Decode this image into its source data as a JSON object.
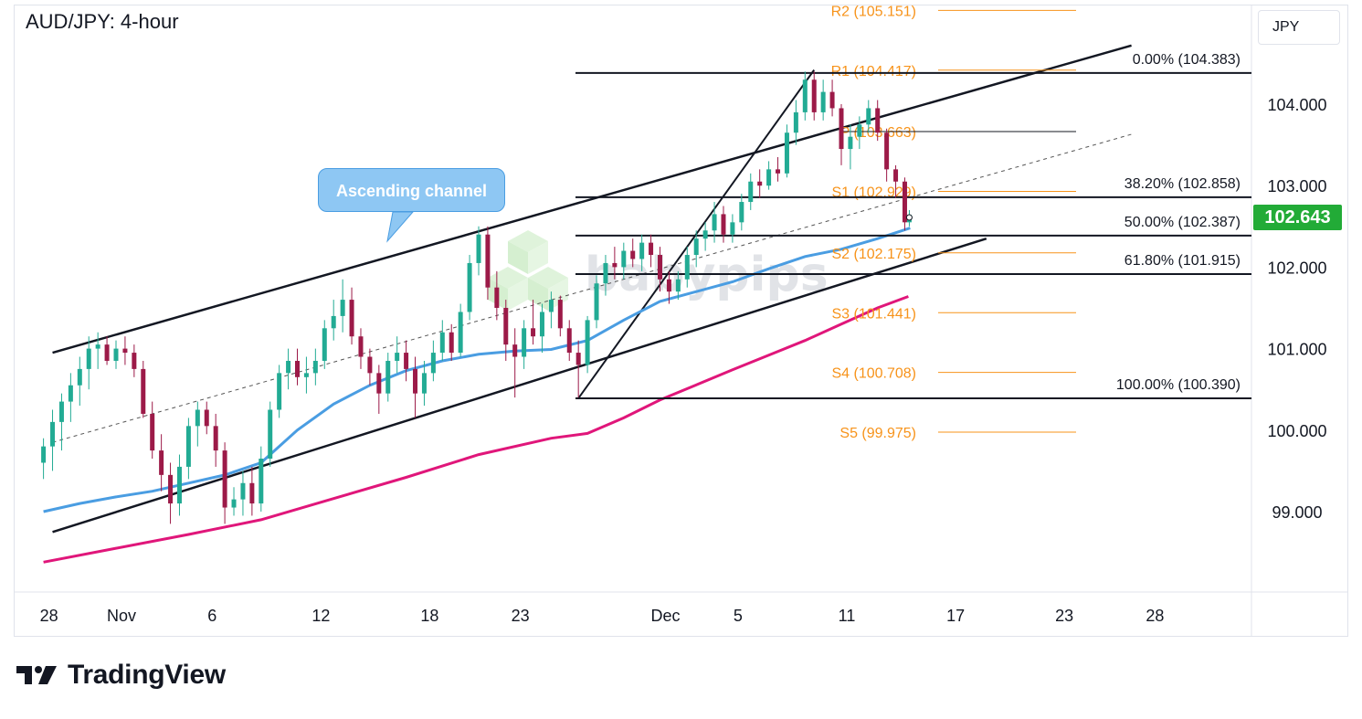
{
  "title": "AUD/JPY: 4-hour",
  "currency_label": "JPY",
  "current_price_label": "102.643",
  "callout_label": "Ascending channel",
  "watermark": "babypips",
  "brand": "TradingView",
  "colors": {
    "up_candle": "#22ab94",
    "down_candle": "#9c1a48",
    "ema_fast": "#4a9de2",
    "ema_slow": "#e0167a",
    "pivot": "#f7931a",
    "price_tag": "#22ab37"
  },
  "chart_data": {
    "type": "candlestick",
    "yaxis": {
      "ticks": [
        "104.000",
        "103.000",
        "102.000",
        "101.000",
        "100.000",
        "99.000"
      ],
      "tick_values": [
        104,
        103,
        102,
        101,
        100,
        99
      ],
      "range": [
        98.3,
        105.2
      ]
    },
    "xaxis": {
      "ticks": [
        "28",
        "Nov",
        "6",
        "12",
        "18",
        "23",
        "Dec",
        "5",
        "11",
        "17",
        "23",
        "28"
      ],
      "tick_day_index": [
        -4,
        0,
        5,
        11,
        17,
        22,
        30,
        34,
        40,
        46,
        52,
        57
      ]
    },
    "pivots": [
      {
        "label": "R2 (105.151)",
        "value": 105.151
      },
      {
        "label": "R1 (104.417)",
        "value": 104.417
      },
      {
        "label": "P (103.663)",
        "value": 103.663
      },
      {
        "label": "S1 (102.929)",
        "value": 102.929
      },
      {
        "label": "S2 (102.175)",
        "value": 102.175
      },
      {
        "label": "S3 (101.441)",
        "value": 101.441
      },
      {
        "label": "S4 (100.708)",
        "value": 100.708
      },
      {
        "label": "S5 (99.975)",
        "value": 99.975
      }
    ],
    "fibonacci": [
      {
        "label": "0.00% (104.383)",
        "value": 104.383
      },
      {
        "label": "38.20% (102.858)",
        "value": 102.858
      },
      {
        "label": "50.00% (102.387)",
        "value": 102.387
      },
      {
        "label": "61.80% (101.915)",
        "value": 101.915
      },
      {
        "label": "100.00% (100.390)",
        "value": 100.39
      }
    ],
    "channel": {
      "upper": [
        [
          -3.5,
          100.95
        ],
        [
          56,
          104.72
        ]
      ],
      "lower": [
        [
          -3.5,
          98.75
        ],
        [
          48,
          102.35
        ]
      ],
      "mid": [
        [
          -3.5,
          99.85
        ],
        [
          56,
          103.63
        ]
      ]
    },
    "swing_line": [
      [
        25.5,
        100.39
      ],
      [
        38.5,
        104.42
      ]
    ],
    "ema_fast": [
      [
        -4,
        99.0
      ],
      [
        -2,
        99.1
      ],
      [
        0,
        99.18
      ],
      [
        2,
        99.25
      ],
      [
        4,
        99.35
      ],
      [
        6,
        99.45
      ],
      [
        8,
        99.6
      ],
      [
        10,
        100.0
      ],
      [
        12,
        100.32
      ],
      [
        14,
        100.55
      ],
      [
        16,
        100.73
      ],
      [
        18,
        100.85
      ],
      [
        20,
        100.93
      ],
      [
        22,
        100.97
      ],
      [
        24,
        100.99
      ],
      [
        26,
        101.1
      ],
      [
        28,
        101.35
      ],
      [
        30,
        101.58
      ],
      [
        32,
        101.7
      ],
      [
        34,
        101.82
      ],
      [
        36,
        101.98
      ],
      [
        38,
        102.13
      ],
      [
        40,
        102.22
      ],
      [
        42,
        102.35
      ],
      [
        43.8,
        102.48
      ]
    ],
    "ema_slow": [
      [
        -4,
        98.38
      ],
      [
        0,
        98.55
      ],
      [
        4,
        98.72
      ],
      [
        8,
        98.9
      ],
      [
        12,
        99.16
      ],
      [
        16,
        99.42
      ],
      [
        20,
        99.7
      ],
      [
        24,
        99.9
      ],
      [
        26,
        99.96
      ],
      [
        28,
        100.15
      ],
      [
        30,
        100.37
      ],
      [
        34,
        100.74
      ],
      [
        38,
        101.1
      ],
      [
        40,
        101.3
      ],
      [
        42,
        101.5
      ],
      [
        43.7,
        101.64
      ]
    ],
    "last_price": 102.643,
    "candles": [
      {
        "t": -4.0,
        "o": 99.6,
        "h": 99.9,
        "l": 99.4,
        "c": 99.8
      },
      {
        "t": -3.5,
        "o": 99.8,
        "h": 100.25,
        "l": 99.5,
        "c": 100.1
      },
      {
        "t": -3.0,
        "o": 100.1,
        "h": 100.45,
        "l": 99.75,
        "c": 100.35
      },
      {
        "t": -2.5,
        "o": 100.35,
        "h": 100.7,
        "l": 100.1,
        "c": 100.55
      },
      {
        "t": -2.0,
        "o": 100.55,
        "h": 100.9,
        "l": 100.3,
        "c": 100.75
      },
      {
        "t": -1.5,
        "o": 100.75,
        "h": 101.15,
        "l": 100.5,
        "c": 101.0
      },
      {
        "t": -1.0,
        "o": 101.0,
        "h": 101.2,
        "l": 100.75,
        "c": 101.05
      },
      {
        "t": -0.5,
        "o": 101.05,
        "h": 101.15,
        "l": 100.8,
        "c": 100.85
      },
      {
        "t": 0.0,
        "o": 100.85,
        "h": 101.1,
        "l": 100.75,
        "c": 101.0
      },
      {
        "t": 0.5,
        "o": 101.0,
        "h": 101.15,
        "l": 100.8,
        "c": 100.95
      },
      {
        "t": 1.0,
        "o": 100.95,
        "h": 101.05,
        "l": 100.65,
        "c": 100.75
      },
      {
        "t": 1.5,
        "o": 100.75,
        "h": 100.85,
        "l": 100.15,
        "c": 100.2
      },
      {
        "t": 2.0,
        "o": 100.2,
        "h": 100.35,
        "l": 99.65,
        "c": 99.75
      },
      {
        "t": 2.5,
        "o": 99.75,
        "h": 99.95,
        "l": 99.25,
        "c": 99.45
      },
      {
        "t": 3.0,
        "o": 99.45,
        "h": 99.6,
        "l": 98.85,
        "c": 99.1
      },
      {
        "t": 3.5,
        "o": 99.1,
        "h": 99.7,
        "l": 98.95,
        "c": 99.55
      },
      {
        "t": 4.0,
        "o": 99.55,
        "h": 100.15,
        "l": 99.4,
        "c": 100.05
      },
      {
        "t": 4.5,
        "o": 100.05,
        "h": 100.35,
        "l": 99.8,
        "c": 100.25
      },
      {
        "t": 5.0,
        "o": 100.25,
        "h": 100.35,
        "l": 99.95,
        "c": 100.05
      },
      {
        "t": 5.5,
        "o": 100.05,
        "h": 100.2,
        "l": 99.55,
        "c": 99.75
      },
      {
        "t": 6.0,
        "o": 99.75,
        "h": 99.85,
        "l": 98.85,
        "c": 99.05
      },
      {
        "t": 6.5,
        "o": 99.05,
        "h": 99.3,
        "l": 98.95,
        "c": 99.15
      },
      {
        "t": 7.0,
        "o": 99.15,
        "h": 99.5,
        "l": 98.95,
        "c": 99.35
      },
      {
        "t": 7.5,
        "o": 99.35,
        "h": 99.55,
        "l": 98.95,
        "c": 99.1
      },
      {
        "t": 8.0,
        "o": 99.1,
        "h": 99.8,
        "l": 99.0,
        "c": 99.65
      },
      {
        "t": 8.5,
        "o": 99.65,
        "h": 100.35,
        "l": 99.55,
        "c": 100.25
      },
      {
        "t": 9.0,
        "o": 100.25,
        "h": 100.8,
        "l": 100.15,
        "c": 100.7
      },
      {
        "t": 9.5,
        "o": 100.7,
        "h": 101.0,
        "l": 100.5,
        "c": 100.85
      },
      {
        "t": 10.0,
        "o": 100.85,
        "h": 101.0,
        "l": 100.55,
        "c": 100.65
      },
      {
        "t": 10.5,
        "o": 100.65,
        "h": 100.9,
        "l": 100.45,
        "c": 100.7
      },
      {
        "t": 11.0,
        "o": 100.7,
        "h": 101.0,
        "l": 100.55,
        "c": 100.85
      },
      {
        "t": 11.5,
        "o": 100.85,
        "h": 101.35,
        "l": 100.75,
        "c": 101.25
      },
      {
        "t": 12.0,
        "o": 101.25,
        "h": 101.6,
        "l": 101.1,
        "c": 101.4
      },
      {
        "t": 12.5,
        "o": 101.4,
        "h": 101.85,
        "l": 101.2,
        "c": 101.6
      },
      {
        "t": 13.0,
        "o": 101.6,
        "h": 101.75,
        "l": 101.05,
        "c": 101.15
      },
      {
        "t": 13.5,
        "o": 101.15,
        "h": 101.25,
        "l": 100.75,
        "c": 100.9
      },
      {
        "t": 14.0,
        "o": 100.9,
        "h": 101.0,
        "l": 100.55,
        "c": 100.7
      },
      {
        "t": 14.5,
        "o": 100.7,
        "h": 100.8,
        "l": 100.2,
        "c": 100.45
      },
      {
        "t": 15.0,
        "o": 100.45,
        "h": 100.95,
        "l": 100.35,
        "c": 100.85
      },
      {
        "t": 15.5,
        "o": 100.85,
        "h": 101.15,
        "l": 100.7,
        "c": 100.95
      },
      {
        "t": 16.0,
        "o": 100.95,
        "h": 101.1,
        "l": 100.6,
        "c": 100.75
      },
      {
        "t": 16.5,
        "o": 100.75,
        "h": 100.9,
        "l": 100.15,
        "c": 100.45
      },
      {
        "t": 17.0,
        "o": 100.45,
        "h": 100.85,
        "l": 100.3,
        "c": 100.7
      },
      {
        "t": 17.5,
        "o": 100.7,
        "h": 101.1,
        "l": 100.6,
        "c": 100.95
      },
      {
        "t": 18.0,
        "o": 100.95,
        "h": 101.35,
        "l": 100.85,
        "c": 101.2
      },
      {
        "t": 18.5,
        "o": 101.2,
        "h": 101.3,
        "l": 100.85,
        "c": 100.95
      },
      {
        "t": 19.0,
        "o": 100.95,
        "h": 101.55,
        "l": 100.9,
        "c": 101.45
      },
      {
        "t": 19.5,
        "o": 101.45,
        "h": 102.15,
        "l": 101.35,
        "c": 102.05
      },
      {
        "t": 20.0,
        "o": 102.05,
        "h": 102.5,
        "l": 101.9,
        "c": 102.4
      },
      {
        "t": 20.5,
        "o": 102.4,
        "h": 102.5,
        "l": 101.6,
        "c": 101.75
      },
      {
        "t": 21.0,
        "o": 101.75,
        "h": 101.95,
        "l": 101.35,
        "c": 101.5
      },
      {
        "t": 21.5,
        "o": 101.5,
        "h": 101.6,
        "l": 100.85,
        "c": 101.05
      },
      {
        "t": 22.0,
        "o": 101.05,
        "h": 101.25,
        "l": 100.4,
        "c": 100.9
      },
      {
        "t": 22.5,
        "o": 100.9,
        "h": 101.35,
        "l": 100.75,
        "c": 101.25
      },
      {
        "t": 23.0,
        "o": 101.25,
        "h": 101.6,
        "l": 101.05,
        "c": 101.15
      },
      {
        "t": 23.5,
        "o": 101.15,
        "h": 101.55,
        "l": 100.95,
        "c": 101.45
      },
      {
        "t": 24.0,
        "o": 101.45,
        "h": 101.7,
        "l": 101.25,
        "c": 101.6
      },
      {
        "t": 24.5,
        "o": 101.6,
        "h": 101.65,
        "l": 101.15,
        "c": 101.25
      },
      {
        "t": 25.0,
        "o": 101.25,
        "h": 101.35,
        "l": 100.85,
        "c": 100.95
      },
      {
        "t": 25.5,
        "o": 100.95,
        "h": 101.1,
        "l": 100.4,
        "c": 100.8
      },
      {
        "t": 26.0,
        "o": 100.8,
        "h": 101.4,
        "l": 100.7,
        "c": 101.35
      },
      {
        "t": 26.5,
        "o": 101.35,
        "h": 101.9,
        "l": 101.25,
        "c": 101.8
      },
      {
        "t": 27.0,
        "o": 101.8,
        "h": 102.15,
        "l": 101.65,
        "c": 102.05
      },
      {
        "t": 27.5,
        "o": 102.05,
        "h": 102.25,
        "l": 101.85,
        "c": 102.0
      },
      {
        "t": 28.0,
        "o": 102.0,
        "h": 102.3,
        "l": 101.85,
        "c": 102.2
      },
      {
        "t": 28.5,
        "o": 102.2,
        "h": 102.35,
        "l": 102.0,
        "c": 102.1
      },
      {
        "t": 29.0,
        "o": 102.1,
        "h": 102.4,
        "l": 101.95,
        "c": 102.3
      },
      {
        "t": 29.5,
        "o": 102.3,
        "h": 102.4,
        "l": 102.0,
        "c": 102.15
      },
      {
        "t": 30.0,
        "o": 102.15,
        "h": 102.25,
        "l": 101.7,
        "c": 101.85
      },
      {
        "t": 30.5,
        "o": 101.85,
        "h": 101.95,
        "l": 101.55,
        "c": 101.7
      },
      {
        "t": 31.0,
        "o": 101.7,
        "h": 101.95,
        "l": 101.6,
        "c": 101.85
      },
      {
        "t": 31.5,
        "o": 101.85,
        "h": 102.25,
        "l": 101.75,
        "c": 102.15
      },
      {
        "t": 32.0,
        "o": 102.15,
        "h": 102.45,
        "l": 102.0,
        "c": 102.35
      },
      {
        "t": 32.5,
        "o": 102.35,
        "h": 102.55,
        "l": 102.2,
        "c": 102.45
      },
      {
        "t": 33.0,
        "o": 102.45,
        "h": 102.8,
        "l": 102.3,
        "c": 102.65
      },
      {
        "t": 33.5,
        "o": 102.65,
        "h": 102.75,
        "l": 102.3,
        "c": 102.4
      },
      {
        "t": 34.0,
        "o": 102.4,
        "h": 102.65,
        "l": 102.3,
        "c": 102.55
      },
      {
        "t": 34.5,
        "o": 102.55,
        "h": 102.9,
        "l": 102.45,
        "c": 102.8
      },
      {
        "t": 35.0,
        "o": 102.8,
        "h": 103.15,
        "l": 102.7,
        "c": 103.05
      },
      {
        "t": 35.5,
        "o": 103.05,
        "h": 103.2,
        "l": 102.85,
        "c": 103.0
      },
      {
        "t": 36.0,
        "o": 103.0,
        "h": 103.3,
        "l": 102.95,
        "c": 103.2
      },
      {
        "t": 36.5,
        "o": 103.2,
        "h": 103.35,
        "l": 103.05,
        "c": 103.15
      },
      {
        "t": 37.0,
        "o": 103.15,
        "h": 103.75,
        "l": 103.1,
        "c": 103.65
      },
      {
        "t": 37.5,
        "o": 103.65,
        "h": 104.05,
        "l": 103.5,
        "c": 103.9
      },
      {
        "t": 38.0,
        "o": 103.9,
        "h": 104.4,
        "l": 103.8,
        "c": 104.3
      },
      {
        "t": 38.5,
        "o": 104.3,
        "h": 104.4,
        "l": 103.8,
        "c": 103.9
      },
      {
        "t": 39.0,
        "o": 103.9,
        "h": 104.3,
        "l": 103.8,
        "c": 104.15
      },
      {
        "t": 39.5,
        "o": 104.15,
        "h": 104.3,
        "l": 103.85,
        "c": 103.95
      },
      {
        "t": 40.0,
        "o": 103.95,
        "h": 104.0,
        "l": 103.25,
        "c": 103.45
      },
      {
        "t": 40.5,
        "o": 103.45,
        "h": 103.75,
        "l": 103.2,
        "c": 103.6
      },
      {
        "t": 41.0,
        "o": 103.6,
        "h": 103.85,
        "l": 103.45,
        "c": 103.75
      },
      {
        "t": 41.5,
        "o": 103.75,
        "h": 104.05,
        "l": 103.65,
        "c": 103.95
      },
      {
        "t": 42.0,
        "o": 103.95,
        "h": 104.05,
        "l": 103.55,
        "c": 103.65
      },
      {
        "t": 42.5,
        "o": 103.65,
        "h": 103.7,
        "l": 103.05,
        "c": 103.2
      },
      {
        "t": 43.0,
        "o": 103.2,
        "h": 103.25,
        "l": 102.85,
        "c": 103.05
      },
      {
        "t": 43.5,
        "o": 103.05,
        "h": 103.1,
        "l": 102.45,
        "c": 102.55
      },
      {
        "t": 43.75,
        "o": 102.55,
        "h": 102.7,
        "l": 102.5,
        "c": 102.643
      }
    ]
  }
}
